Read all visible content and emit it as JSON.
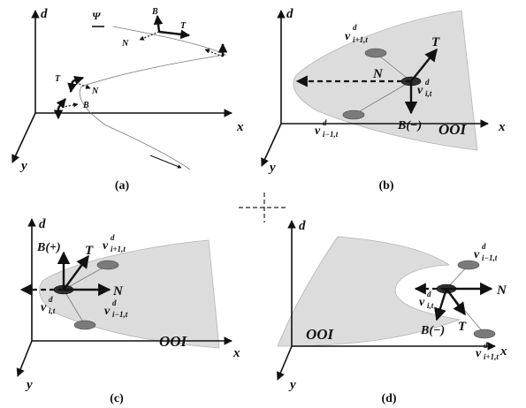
{
  "axes": {
    "x": "x",
    "y": "y",
    "d": "d"
  },
  "panels": [
    {
      "id": "a",
      "caption": "(a)",
      "labels": {
        "psi": "Ψ",
        "B": "B",
        "T": "T",
        "N": "N"
      }
    },
    {
      "id": "b",
      "caption": "(b)",
      "labels": {
        "T": "T",
        "N": "N",
        "B": "B(−)",
        "ooi": "OOI",
        "v_prev": "v",
        "v_prev_sup": "d",
        "v_prev_sub": "i−1,t",
        "v_next": "v",
        "v_next_sup": "d",
        "v_next_sub": "i+1,t",
        "v_cur": "v",
        "v_cur_sup": "d",
        "v_cur_sub": "i,t"
      }
    },
    {
      "id": "c",
      "caption": "(c)",
      "labels": {
        "T": "T",
        "N": "N",
        "B": "B(+)",
        "ooi": "OOI",
        "v_prev": "v",
        "v_prev_sup": "d",
        "v_prev_sub": "i−1,t",
        "v_next": "v",
        "v_next_sup": "d",
        "v_next_sub": "i+1,t",
        "v_cur": "v",
        "v_cur_sup": "d",
        "v_cur_sub": "i,t"
      }
    },
    {
      "id": "d",
      "caption": "(d)",
      "labels": {
        "T": "T",
        "N": "N",
        "B": "B(−)",
        "ooi": "OOI",
        "v_prev": "v",
        "v_prev_sup": "d",
        "v_prev_sub": "i−1,t",
        "v_next": "v",
        "v_next_sup": "d",
        "v_next_sub": "i+1,t",
        "v_cur": "v",
        "v_cur_sup": "d",
        "v_cur_sub": "i,t"
      }
    }
  ]
}
